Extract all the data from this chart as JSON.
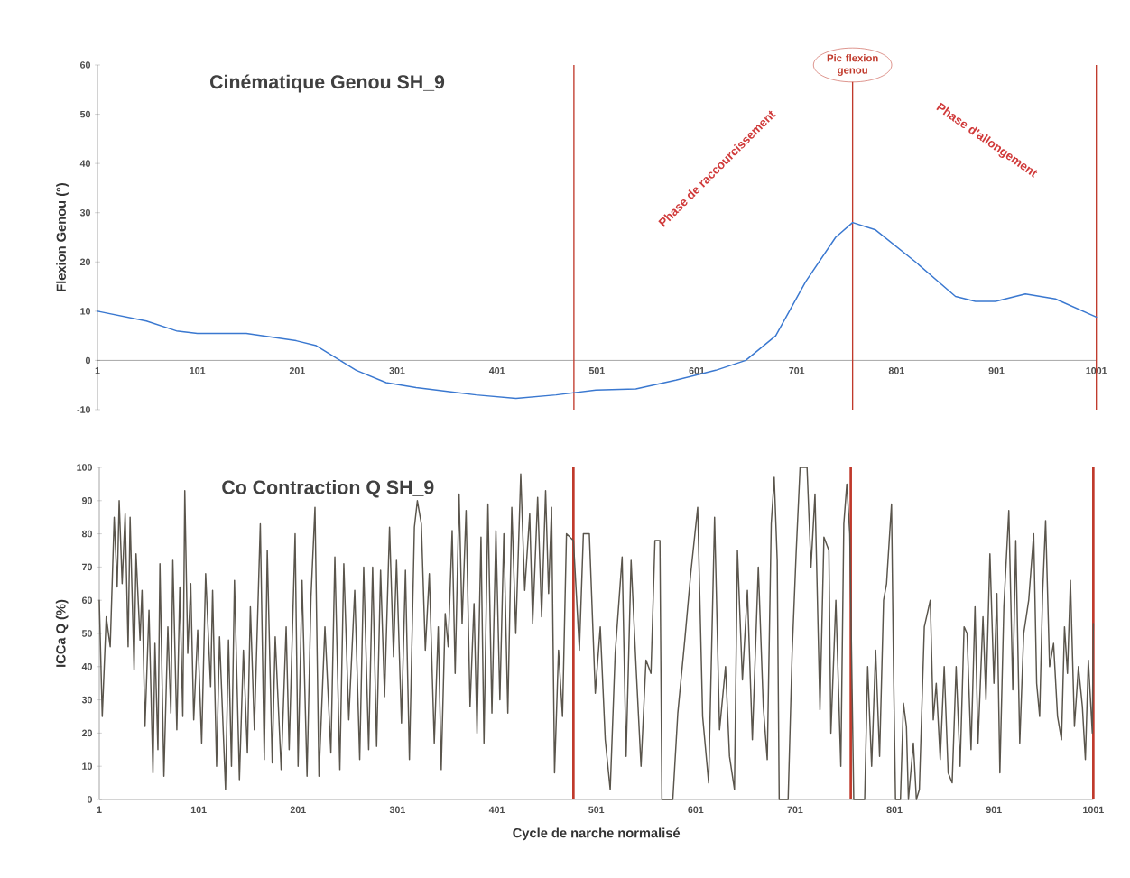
{
  "chart_data": [
    {
      "type": "line",
      "title": "Cinématique Genou SH_9",
      "ylabel": "Flexion Genou (°)",
      "color": "#3a78d0",
      "marker": "none",
      "x": [
        1,
        50,
        80,
        101,
        150,
        200,
        220,
        240,
        260,
        290,
        320,
        380,
        420,
        460,
        500,
        540,
        580,
        620,
        650,
        680,
        710,
        740,
        757,
        780,
        820,
        860,
        880,
        900,
        930,
        960,
        1001
      ],
      "values": [
        10,
        8,
        6,
        5.5,
        5.5,
        4,
        3,
        0.5,
        -2,
        -4.5,
        -5.5,
        -7,
        -7.7,
        -7,
        -6,
        -5.8,
        -4,
        -2,
        0,
        5,
        16,
        25,
        28,
        26.5,
        20,
        13,
        12,
        12,
        13.5,
        12.5,
        8.8
      ],
      "xlim": [
        1,
        1001
      ],
      "xticks": [
        1,
        101,
        201,
        301,
        401,
        501,
        601,
        701,
        801,
        901,
        1001
      ],
      "ylim": [
        -10,
        60
      ],
      "yticks": [
        -10,
        0,
        10,
        20,
        30,
        40,
        50,
        60
      ],
      "ref_lines": [
        {
          "axis": "x",
          "value": 478,
          "label": null,
          "color": "#c0392b"
        },
        {
          "axis": "x",
          "value": 757,
          "label": "Pic flexion genou",
          "color": "#c0392b"
        },
        {
          "axis": "x",
          "value": 1001,
          "label": null,
          "color": "#c0392b"
        }
      ],
      "annotations": [
        "Phase de raccourcissement",
        "Phase d'allongement"
      ]
    },
    {
      "type": "line",
      "title": "Co Contraction Q SH_9",
      "ylabel": "ICCa Q (%)",
      "xlabel": "Cycle de narche normalisé",
      "color": "#5a554c",
      "marker": "none",
      "x": [
        1,
        4,
        8,
        12,
        16,
        19,
        21,
        24,
        27,
        30,
        32,
        36,
        38,
        42,
        44,
        47,
        51,
        55,
        57,
        60,
        62,
        66,
        70,
        73,
        75,
        79,
        82,
        85,
        87,
        90,
        93,
        96,
        100,
        104,
        108,
        113,
        115,
        119,
        122,
        128,
        131,
        134,
        137,
        142,
        146,
        150,
        153,
        157,
        163,
        167,
        170,
        175,
        178,
        184,
        189,
        192,
        198,
        201,
        205,
        210,
        214,
        218,
        222,
        228,
        234,
        238,
        243,
        247,
        252,
        258,
        263,
        267,
        272,
        276,
        280,
        284,
        288,
        293,
        297,
        300,
        305,
        309,
        313,
        318,
        321,
        325,
        329,
        333,
        338,
        342,
        345,
        349,
        352,
        356,
        359,
        363,
        366,
        370,
        374,
        378,
        381,
        385,
        388,
        392,
        396,
        400,
        404,
        408,
        412,
        416,
        420,
        425,
        429,
        434,
        437,
        442,
        446,
        450,
        453,
        456,
        459,
        463,
        467,
        471,
        478,
        484,
        488,
        494,
        500,
        505,
        510,
        515,
        520,
        527,
        531,
        536,
        541,
        546,
        551,
        556,
        560,
        565,
        567,
        578,
        583,
        590,
        596,
        603,
        608,
        614,
        620,
        625,
        631,
        635,
        640,
        643,
        648,
        653,
        658,
        664,
        669,
        673,
        677,
        680,
        683,
        685,
        694,
        698,
        702,
        706,
        713,
        717,
        721,
        726,
        730,
        735,
        737,
        742,
        747,
        750,
        753,
        756,
        760,
        771,
        774,
        778,
        782,
        786,
        790,
        793,
        798,
        800,
        802,
        807,
        810,
        813,
        815,
        820,
        823,
        826,
        831,
        837,
        840,
        843,
        847,
        851,
        855,
        859,
        863,
        867,
        871,
        874,
        878,
        882,
        885,
        890,
        893,
        897,
        901,
        904,
        907,
        911,
        916,
        920,
        923,
        927,
        931,
        936,
        941,
        944,
        947,
        950,
        953,
        957,
        961,
        965,
        969,
        972,
        975,
        978,
        982,
        986,
        990,
        993,
        996,
        1000,
        1001
      ],
      "values": [
        60,
        25,
        55,
        46,
        85,
        64,
        90,
        65,
        86,
        46,
        85,
        39,
        74,
        48,
        63,
        22,
        57,
        8,
        47,
        15,
        71,
        7,
        52,
        26,
        72,
        21,
        64,
        25,
        93,
        44,
        65,
        24,
        51,
        17,
        68,
        34,
        63,
        10,
        49,
        3,
        48,
        10,
        66,
        6,
        45,
        14,
        58,
        21,
        83,
        12,
        75,
        11,
        49,
        9,
        52,
        15,
        80,
        10,
        66,
        7,
        61,
        88,
        7,
        52,
        14,
        73,
        9,
        71,
        24,
        63,
        12,
        70,
        15,
        70,
        16,
        69,
        31,
        82,
        43,
        72,
        23,
        69,
        12,
        82,
        90,
        83,
        45,
        68,
        17,
        52,
        9,
        56,
        46,
        81,
        38,
        92,
        53,
        87,
        28,
        59,
        20,
        79,
        17,
        89,
        26,
        81,
        30,
        80,
        26,
        88,
        50,
        98,
        63,
        86,
        53,
        91,
        55,
        93,
        62,
        88,
        8,
        45,
        25,
        80,
        78,
        45,
        80,
        80,
        32,
        52,
        18,
        3,
        44,
        73,
        13,
        72,
        40,
        10,
        42,
        38,
        78,
        78,
        0,
        0,
        26,
        48,
        68,
        88,
        25,
        5,
        85,
        21,
        40,
        13,
        3,
        75,
        36,
        63,
        18,
        70,
        28,
        12,
        83,
        97,
        72,
        0,
        0,
        44,
        74,
        100,
        100,
        70,
        92,
        27,
        79,
        75,
        20,
        60,
        10,
        83,
        95,
        80,
        0,
        0,
        40,
        10,
        45,
        13,
        60,
        65,
        89,
        40,
        0,
        0,
        29,
        22,
        0,
        17,
        0,
        3,
        52,
        60,
        24,
        35,
        12,
        40,
        8,
        5,
        40,
        10,
        52,
        50,
        15,
        58,
        17,
        55,
        30,
        74,
        35,
        62,
        8,
        58,
        87,
        33,
        78,
        17,
        50,
        60,
        80,
        35,
        25,
        62,
        84,
        40,
        47,
        25,
        18,
        52,
        38,
        66,
        22,
        40,
        28,
        12,
        42,
        20,
        53
      ],
      "xlim": [
        1,
        1001
      ],
      "xticks": [
        1,
        101,
        201,
        301,
        401,
        501,
        601,
        701,
        801,
        901,
        1001
      ],
      "ylim": [
        0,
        100
      ],
      "yticks": [
        0,
        10,
        20,
        30,
        40,
        50,
        60,
        70,
        80,
        90,
        100
      ],
      "ref_lines": [
        {
          "axis": "x",
          "value": 478,
          "label": null,
          "color": "#c0392b"
        },
        {
          "axis": "x",
          "value": 757,
          "label": null,
          "color": "#c0392b"
        },
        {
          "axis": "x",
          "value": 1001,
          "label": null,
          "color": "#c0392b"
        }
      ]
    }
  ]
}
